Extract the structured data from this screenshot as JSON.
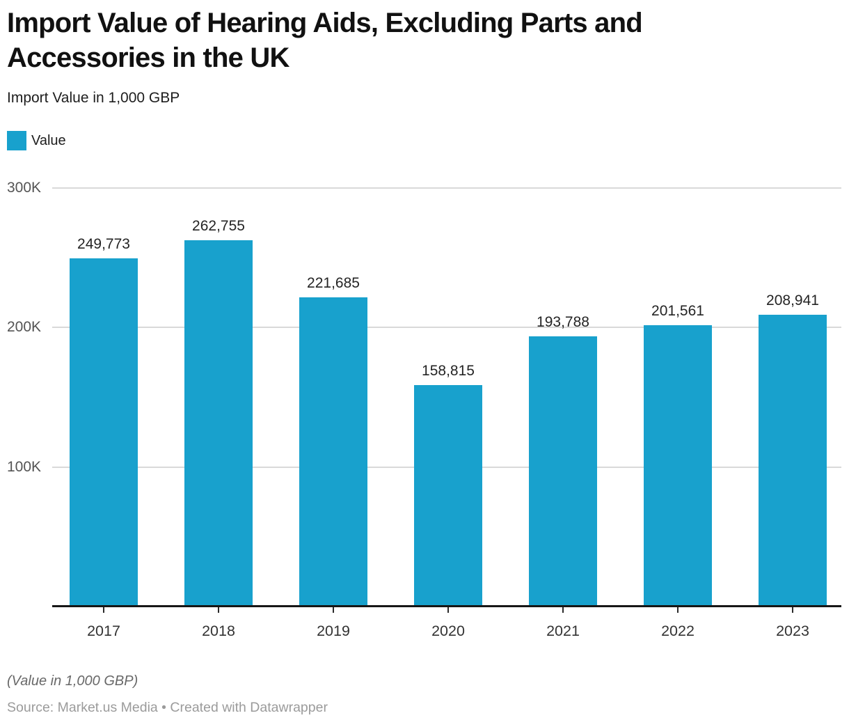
{
  "header": {
    "title_lines": [
      "Import Value of Hearing Aids, Excluding Parts and",
      "Accessories in the UK"
    ],
    "subtitle": "Import Value in 1,000 GBP"
  },
  "legend": {
    "items": [
      {
        "label": "Value",
        "color": "#18a1cd"
      }
    ]
  },
  "chart_data": {
    "type": "bar",
    "title": "Import Value of Hearing Aids, Excluding Parts and Accessories in the UK",
    "subtitle": "Import Value in 1,000 GBP",
    "categories": [
      "2017",
      "2018",
      "2019",
      "2020",
      "2021",
      "2022",
      "2023"
    ],
    "series": [
      {
        "name": "Value",
        "values": [
          249773,
          262755,
          221685,
          158815,
          193788,
          201561,
          208941
        ]
      }
    ],
    "value_labels": [
      "249,773",
      "262,755",
      "221,685",
      "158,815",
      "193,788",
      "201,561",
      "208,941"
    ],
    "xlabel": "",
    "ylabel": "",
    "ylim": [
      0,
      300000
    ],
    "yticks": [
      {
        "value": 100000,
        "label": "100K"
      },
      {
        "value": 200000,
        "label": "200K"
      },
      {
        "value": 300000,
        "label": "300K"
      }
    ],
    "grid": "horizontal",
    "legend_position": "top-left",
    "bar_color": "#18a1cd"
  },
  "footer": {
    "note": "(Value in 1,000 GBP)",
    "source": "Source: Market.us Media • Created with Datawrapper"
  }
}
